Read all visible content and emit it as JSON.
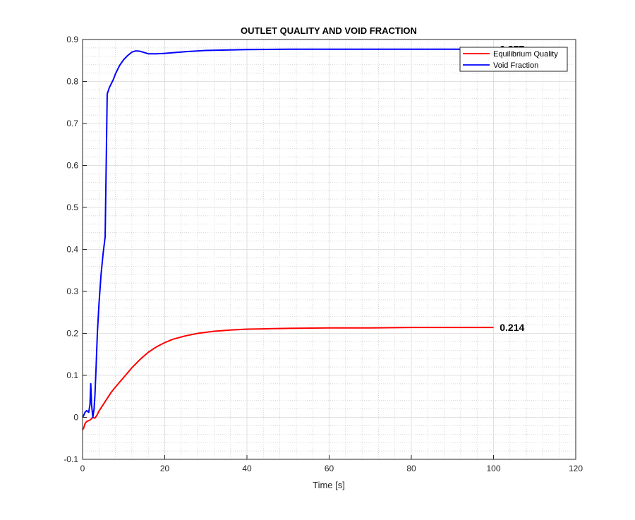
{
  "chart_data": {
    "type": "line",
    "title": "OUTLET QUALITY AND VOID FRACTION",
    "xlabel": "Time [s]",
    "ylabel": "",
    "xlim": [
      0,
      120
    ],
    "ylim": [
      -0.1,
      0.9
    ],
    "xticks": [
      0,
      20,
      40,
      60,
      80,
      100,
      120
    ],
    "yticks": [
      -0.1,
      0,
      0.1,
      0.2,
      0.3,
      0.4,
      0.5,
      0.6,
      0.7,
      0.8,
      0.9
    ],
    "xtick_labels": [
      "0",
      "20",
      "40",
      "60",
      "80",
      "100",
      "120"
    ],
    "ytick_labels": [
      "-0.1",
      "0",
      "0.1",
      "0.2",
      "0.3",
      "0.4",
      "0.5",
      "0.6",
      "0.7",
      "0.8",
      "0.9"
    ],
    "grid": true,
    "minor_grid": true,
    "legend_position": "top-right",
    "series": [
      {
        "name": "Equilibrium Quality",
        "color": "#ff0000",
        "x": [
          0,
          0.3,
          0.6,
          1.0,
          1.5,
          2.0,
          2.5,
          3.0,
          3.5,
          4.0,
          5.0,
          6.0,
          7.0,
          8.0,
          10.0,
          12.0,
          14.0,
          16.0,
          18.0,
          20.0,
          22.0,
          25.0,
          28.0,
          32.0,
          36.0,
          40.0,
          45.0,
          50.0,
          60.0,
          70.0,
          80.0,
          90.0,
          100.0
        ],
        "y": [
          -0.03,
          -0.025,
          -0.015,
          -0.01,
          -0.008,
          -0.005,
          0.0,
          -0.002,
          0.005,
          0.015,
          0.03,
          0.045,
          0.06,
          0.072,
          0.095,
          0.118,
          0.138,
          0.155,
          0.168,
          0.178,
          0.186,
          0.194,
          0.2,
          0.205,
          0.208,
          0.21,
          0.211,
          0.212,
          0.213,
          0.213,
          0.214,
          0.214,
          0.214
        ]
      },
      {
        "name": "Void Fraction",
        "color": "#0000ff",
        "x": [
          0,
          0.3,
          0.6,
          1.0,
          1.5,
          1.8,
          2.0,
          2.2,
          2.5,
          2.8,
          3.0,
          3.3,
          3.6,
          4.0,
          4.5,
          5.0,
          5.5,
          6.0,
          6.5,
          7.0,
          7.5,
          8.0,
          9.0,
          10.0,
          11.0,
          12.0,
          13.0,
          14.0,
          15.0,
          16.0,
          18.0,
          20.0,
          25.0,
          30.0,
          40.0,
          50.0,
          60.0,
          80.0,
          100.0
        ],
        "y": [
          0.0,
          0.005,
          0.012,
          0.016,
          0.012,
          0.03,
          0.08,
          0.03,
          0.0,
          0.02,
          0.05,
          0.12,
          0.2,
          0.27,
          0.34,
          0.39,
          0.43,
          0.77,
          0.785,
          0.795,
          0.805,
          0.818,
          0.838,
          0.852,
          0.862,
          0.87,
          0.873,
          0.872,
          0.869,
          0.866,
          0.866,
          0.867,
          0.871,
          0.874,
          0.876,
          0.877,
          0.877,
          0.877,
          0.877
        ]
      }
    ],
    "annotations": [
      {
        "text": "0.214",
        "x": 101.5,
        "y": 0.214
      },
      {
        "text": "0.877",
        "x": 101.5,
        "y": 0.877
      }
    ]
  }
}
